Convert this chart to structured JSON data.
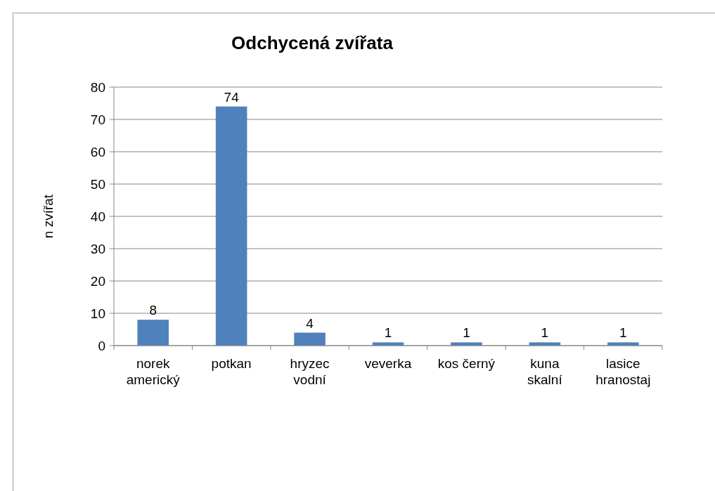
{
  "chart_data": {
    "type": "bar",
    "title": "Odchycená zvířata",
    "ylabel": "n  zvířat",
    "categories": [
      "norek americký",
      "potkan",
      "hryzec vodní",
      "veverka",
      "kos černý",
      "kuna skalní",
      "lasice hranostaj"
    ],
    "values": [
      8,
      74,
      4,
      1,
      1,
      1,
      1
    ],
    "color": "#4f81bd",
    "ylim": [
      0,
      80
    ],
    "yticks": [
      0,
      10,
      20,
      30,
      40,
      50,
      60,
      70,
      80
    ],
    "grid": "y",
    "data_labels": true
  }
}
